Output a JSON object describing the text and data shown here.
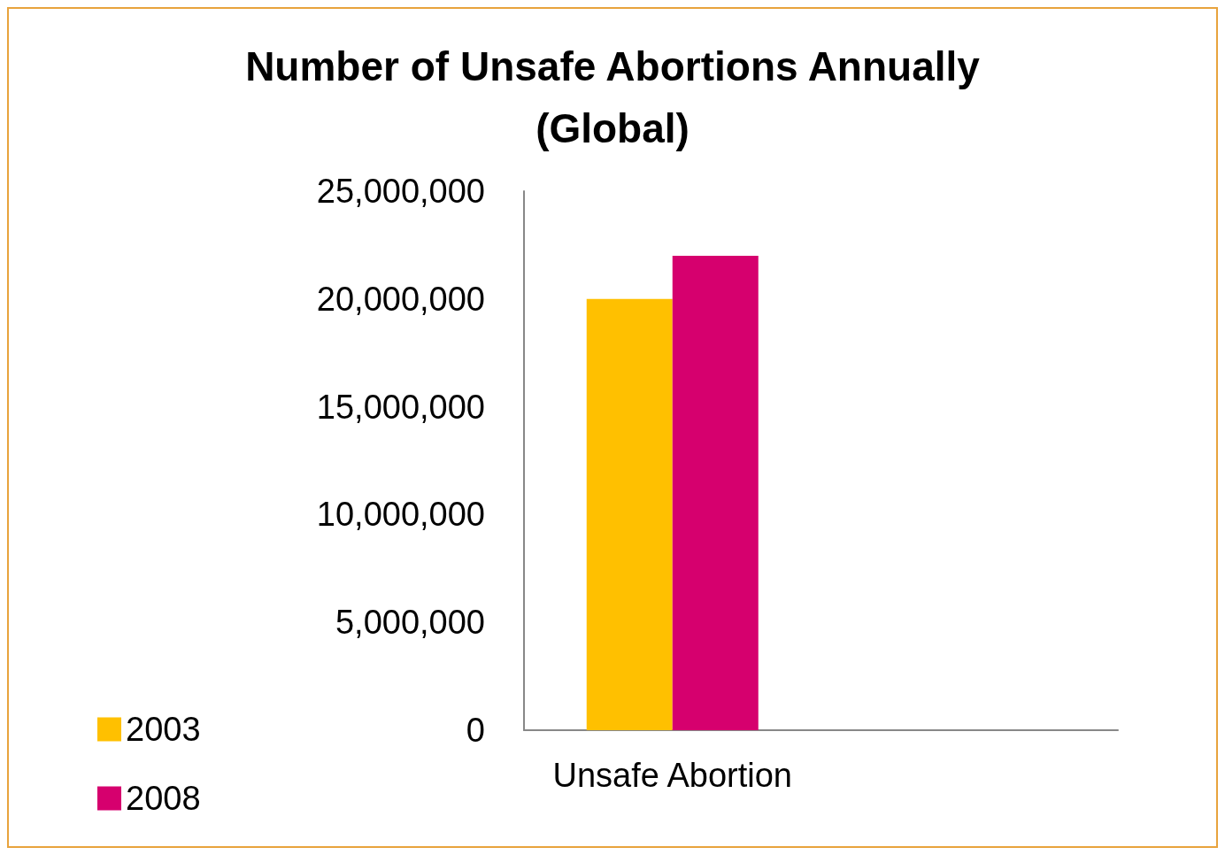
{
  "chart_data": {
    "type": "bar",
    "title": "Number of Unsafe Abortions Annually\n(Global)",
    "categories": [
      "Unsafe Abortion",
      null
    ],
    "series": [
      {
        "name": "2003",
        "color": "#ffc000",
        "values": [
          20000000,
          null
        ]
      },
      {
        "name": "2008",
        "color": "#d6006e",
        "values": [
          22000000,
          null
        ]
      }
    ],
    "ylim": [
      0,
      25000000
    ],
    "yticks": [
      0,
      {
        "value": 5000000,
        "label": "5,000,000"
      },
      {
        "value": 10000000,
        "label": "10,000,000"
      },
      {
        "value": 15000000,
        "label": "15,000,000"
      },
      {
        "value": 20000000,
        "label": "20,000,000"
      },
      {
        "value": 25000000,
        "label": "25,000,000"
      }
    ],
    "grid": false,
    "legend": "bottom left"
  }
}
